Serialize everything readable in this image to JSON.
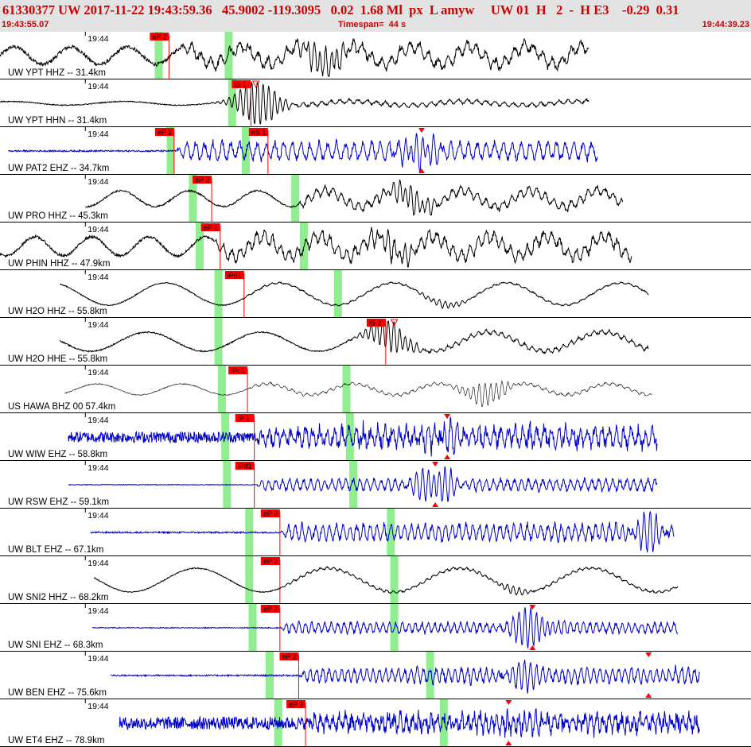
{
  "header": {
    "title": "61330377 UW 2017-11-22 19:43:59.36   45.9002 -119.3095   0.02  1.68 Ml  px  L amyw     UW 01  H   2  -  H E3    -0.29  0.31",
    "start_time": "19:43:55.07",
    "timespan": "Timespan=  44 s",
    "end_time": "19:44:39.23"
  },
  "colors": {
    "black_trace": "#000000",
    "blue_trace": "#0000cc",
    "pick": "#ff0000",
    "window": "#90ee90",
    "header_bg": "#e3e3e3",
    "header_text": "#d00000"
  },
  "chart_data": {
    "type": "line",
    "title": "",
    "xlabel": "",
    "x_range_s": [
      0,
      44
    ],
    "tick_label": "19:44",
    "series": [
      {
        "name": "UW YPT HHZ -- 31.4km",
        "color": "black",
        "start": 0.0,
        "end": 34.5,
        "picks": [
          {
            "label": "eP 2",
            "t": 9.9
          }
        ],
        "windows": [
          9.3,
          13.4
        ],
        "amp": 0.55,
        "freq": 0.3,
        "noise": 0.12,
        "hfAmp": 0.4,
        "hfStart": 10.5,
        "quiet": 0,
        "burst": {
          "t": 19.0,
          "a": 0.9
        }
      },
      {
        "name": "UW YPT HHN -- 31.4km",
        "color": "black",
        "start": 0.0,
        "end": 34.5,
        "picks": [
          {
            "label": "iS 1",
            "t": 14.7,
            "tri": "down-open-top",
            "tt": 15.0
          }
        ],
        "windows": [
          13.6
        ],
        "amp": 0.12,
        "freq": 0.15,
        "noise": 0.03,
        "hfAmp": 0.15,
        "hfStart": 14.3,
        "quiet": 0,
        "burst": {
          "t": 15.1,
          "a": 1.4
        }
      },
      {
        "name": "UW PAT2 EHZ -- 34.7km",
        "color": "blue",
        "start": 0.5,
        "end": 35.0,
        "picks": [
          {
            "label": "eP 2",
            "t": 10.2
          },
          {
            "label": "eS 1",
            "t": 15.7
          }
        ],
        "windows": [
          10.0,
          14.4
        ],
        "amp": 0.0,
        "freq": 0.5,
        "noise": 0.05,
        "hfAmp": 0.6,
        "hfStart": 10.3,
        "quiet": 0,
        "burst": {
          "t": 24.7,
          "a": 0.8
        },
        "tri": [
          {
            "t": 24.7,
            "pos": "both"
          }
        ]
      },
      {
        "name": "UW PRO HHZ -- 45.3km",
        "color": "black",
        "start": 5.0,
        "end": 36.5,
        "picks": [
          {
            "label": "eP 2",
            "t": 12.4
          }
        ],
        "windows": [
          11.3,
          17.3
        ],
        "amp": 0.5,
        "freq": 0.25,
        "noise": 0.05,
        "hfAmp": 0.3,
        "hfStart": 17.3,
        "quiet": 0,
        "burst": {
          "t": 24.0,
          "a": 0.7
        }
      },
      {
        "name": "UW PHIN HHZ -- 47.9km",
        "color": "black",
        "start": 0.0,
        "end": 37.0,
        "picks": [
          {
            "label": "eP 1",
            "t": 12.9
          }
        ],
        "windows": [
          11.7,
          17.8
        ],
        "amp": 0.6,
        "freq": 0.3,
        "noise": 0.08,
        "hfAmp": 0.45,
        "hfStart": 12.5,
        "quiet": 0,
        "burst": {
          "t": 23.0,
          "a": 0.6
        }
      },
      {
        "name": "UW H2O HHZ -- 55.8km",
        "color": "black",
        "start": 3.5,
        "end": 38.0,
        "picks": [
          {
            "label": "iPd1",
            "t": 14.3
          }
        ],
        "windows": [
          12.8,
          19.8
        ],
        "amp": 0.7,
        "freq": 0.15,
        "noise": 0.03,
        "hfAmp": 0.05,
        "hfStart": 14.0,
        "quiet": 0,
        "burst": {
          "t": 26.0,
          "a": 0.2
        }
      },
      {
        "name": "UW H2O HHE -- 55.8km",
        "color": "black",
        "start": 3.5,
        "end": 38.0,
        "picks": [
          {
            "label": "iS 2",
            "t": 22.6,
            "tri": "down-open-top",
            "tt": 23.1
          }
        ],
        "windows": [
          12.8
        ],
        "amp": 0.6,
        "freq": 0.15,
        "noise": 0.04,
        "hfAmp": 0.15,
        "hfStart": 22.5,
        "quiet": 0,
        "burst": {
          "t": 22.8,
          "a": 0.9
        }
      },
      {
        "name": "US HAWA BHZ 00 57.4km",
        "color": "black",
        "thin": true,
        "start": 3.8,
        "end": 38.2,
        "picks": [
          {
            "label": "iPc1",
            "t": 14.5
          }
        ],
        "windows": [
          13.0,
          20.3
        ],
        "amp": 0.35,
        "freq": 0.2,
        "noise": 0.03,
        "hfAmp": 0.1,
        "hfStart": 14.5,
        "quiet": 0,
        "burst": {
          "t": 28.5,
          "a": 0.7
        }
      },
      {
        "name": "UW WIW EHZ -- 58.8km",
        "color": "blue",
        "start": 4.0,
        "end": 38.5,
        "picks": [
          {
            "label": "iP 1",
            "t": 14.9
          }
        ],
        "windows": [
          13.2,
          20.5
        ],
        "amp": 0.0,
        "freq": 0.5,
        "noise": 0.35,
        "hfAmp": 0.6,
        "hfStart": 15.0,
        "quiet": 0,
        "burst": {
          "t": 26.0,
          "a": 0.6
        },
        "tri": [
          {
            "t": 26.2,
            "pos": "both"
          }
        ]
      },
      {
        "name": "UW RSW EHZ -- 59.1km",
        "color": "blue",
        "start": 4.0,
        "end": 38.5,
        "picks": [
          {
            "label": "iPd1",
            "t": 14.9
          }
        ],
        "windows": [
          13.3,
          20.7
        ],
        "amp": 0.0,
        "freq": 0.5,
        "noise": 0.02,
        "hfAmp": 0.4,
        "hfStart": 15.0,
        "quiet": 0,
        "burst": {
          "t": 25.5,
          "a": 1.0
        },
        "tri": [
          {
            "t": 25.5,
            "pos": "both"
          }
        ]
      },
      {
        "name": "UW BLT EHZ -- 67.1km",
        "color": "blue",
        "start": 5.3,
        "end": 39.5,
        "picks": [
          {
            "label": "eP 2",
            "t": 16.4
          }
        ],
        "windows": [
          14.6,
          22.9
        ],
        "amp": 0.0,
        "freq": 0.5,
        "noise": 0.05,
        "hfAmp": 0.55,
        "hfStart": 16.4,
        "quiet": 0,
        "burst": {
          "t": 38.0,
          "a": 0.9
        }
      },
      {
        "name": "UW SNI2 HHZ -- 68.2km",
        "color": "black",
        "start": 5.5,
        "end": 39.7,
        "picks": [
          {
            "label": "eP 2",
            "t": 16.4
          }
        ],
        "windows": [
          14.6,
          23.1
        ],
        "amp": 0.75,
        "freq": 0.13,
        "noise": 0.03,
        "hfAmp": 0.08,
        "hfStart": 16.4,
        "quiet": 0,
        "burst": {
          "t": 30.0,
          "a": 0.2
        }
      },
      {
        "name": "UW SNI EHZ -- 68.3km",
        "color": "blue",
        "start": 5.4,
        "end": 39.7,
        "picks": [
          {
            "label": "eP 2",
            "t": 16.4
          }
        ],
        "windows": [
          14.8,
          23.1
        ],
        "amp": 0.0,
        "freq": 0.5,
        "noise": 0.03,
        "hfAmp": 0.35,
        "hfStart": 16.4,
        "quiet": 0,
        "burst": {
          "t": 31.2,
          "a": 1.1
        },
        "tri": [
          {
            "t": 31.2,
            "pos": "both"
          }
        ]
      },
      {
        "name": "UW BEN EHZ -- 75.6km",
        "color": "blue",
        "start": 6.5,
        "end": 41.0,
        "picks": [
          {
            "label": "eP 2",
            "t": 17.5
          }
        ],
        "windows": [
          15.8,
          25.2
        ],
        "amp": 0.0,
        "freq": 0.5,
        "noise": 0.05,
        "hfAmp": 0.5,
        "hfStart": 17.5,
        "quiet": 0,
        "burst": {
          "t": 30.5,
          "a": 0.6
        },
        "tri": [
          {
            "t": 38.0,
            "pos": "both"
          }
        ]
      },
      {
        "name": "UW ET4 EHZ -- 78.9km",
        "color": "blue",
        "start": 7.0,
        "end": 41.0,
        "picks": [
          {
            "label": "eP 2",
            "t": 17.9
          }
        ],
        "windows": [
          16.3,
          26.0
        ],
        "amp": 0.0,
        "freq": 0.5,
        "noise": 0.4,
        "hfAmp": 0.45,
        "hfStart": 17.9,
        "quiet": 0,
        "burst": {
          "t": 29.8,
          "a": 0.8
        },
        "tri": [
          {
            "t": 29.8,
            "pos": "both"
          }
        ]
      }
    ]
  }
}
